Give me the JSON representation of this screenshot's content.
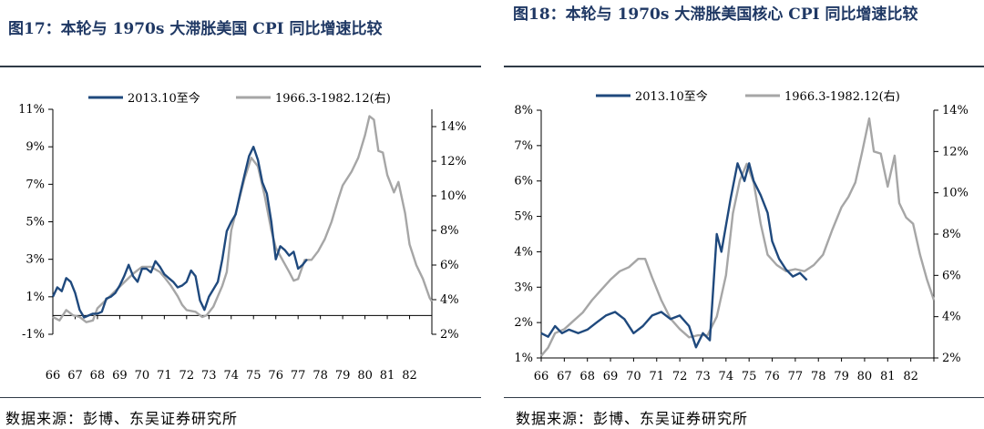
{
  "panels": [
    {
      "title": "图17：本轮与 1970s 大滞胀美国 CPI 同比增速比较",
      "source": "数据来源：彭博、东吴证券研究所"
    },
    {
      "title": "图18：本轮与 1970s 大滞胀美国核心 CPI 同比增速比较",
      "source": "数据来源：彭博、东吴证券研究所"
    }
  ],
  "colors": {
    "current": "#1f497d",
    "historical": "#a6a6a6",
    "title": "#1f3864"
  },
  "chart_data": [
    {
      "type": "line",
      "x_ticks": [
        "66",
        "67",
        "68",
        "69",
        "70",
        "71",
        "72",
        "73",
        "74",
        "75",
        "76",
        "77",
        "78",
        "79",
        "80",
        "81",
        "82"
      ],
      "ylim_left": [
        -1,
        11
      ],
      "yticks_left": [
        "-1%",
        "1%",
        "3%",
        "5%",
        "7%",
        "9%",
        "11%"
      ],
      "yticks_left_values": [
        -1,
        1,
        3,
        5,
        7,
        9,
        11
      ],
      "ylim_right": [
        2,
        15
      ],
      "yticks_right": [
        "2%",
        "4%",
        "6%",
        "8%",
        "10%",
        "12%",
        "14%"
      ],
      "yticks_right_values": [
        2,
        4,
        6,
        8,
        10,
        12,
        14
      ],
      "legend_position": "top",
      "series": [
        {
          "name": "2013.10至今",
          "axis": "left",
          "color": "#1f497d",
          "points": [
            [
              66,
              1.0
            ],
            [
              66.2,
              1.5
            ],
            [
              66.4,
              1.3
            ],
            [
              66.6,
              2.0
            ],
            [
              66.8,
              1.8
            ],
            [
              67.0,
              1.2
            ],
            [
              67.2,
              0.3
            ],
            [
              67.4,
              -0.1
            ],
            [
              67.6,
              0.0
            ],
            [
              67.8,
              0.1
            ],
            [
              68.0,
              0.1
            ],
            [
              68.2,
              0.2
            ],
            [
              68.4,
              0.9
            ],
            [
              68.6,
              1.0
            ],
            [
              68.8,
              1.2
            ],
            [
              69.0,
              1.6
            ],
            [
              69.2,
              2.1
            ],
            [
              69.4,
              2.7
            ],
            [
              69.6,
              2.1
            ],
            [
              69.8,
              1.8
            ],
            [
              70.0,
              2.5
            ],
            [
              70.2,
              2.5
            ],
            [
              70.4,
              2.3
            ],
            [
              70.6,
              2.9
            ],
            [
              70.8,
              2.6
            ],
            [
              71.0,
              2.2
            ],
            [
              71.2,
              2.0
            ],
            [
              71.4,
              1.8
            ],
            [
              71.6,
              1.5
            ],
            [
              71.8,
              1.6
            ],
            [
              72.0,
              1.8
            ],
            [
              72.2,
              2.4
            ],
            [
              72.4,
              2.1
            ],
            [
              72.6,
              0.8
            ],
            [
              72.8,
              0.3
            ],
            [
              73.0,
              1.0
            ],
            [
              73.2,
              1.4
            ],
            [
              73.4,
              1.8
            ],
            [
              73.6,
              3.0
            ],
            [
              73.8,
              4.5
            ],
            [
              74.0,
              5.0
            ],
            [
              74.2,
              5.4
            ],
            [
              74.4,
              6.5
            ],
            [
              74.6,
              7.5
            ],
            [
              74.8,
              8.5
            ],
            [
              75.0,
              9.0
            ],
            [
              75.2,
              8.3
            ],
            [
              75.4,
              7.1
            ],
            [
              75.6,
              6.5
            ],
            [
              75.8,
              5.0
            ],
            [
              76.0,
              3.0
            ],
            [
              76.2,
              3.7
            ],
            [
              76.4,
              3.5
            ],
            [
              76.6,
              3.2
            ],
            [
              76.8,
              3.4
            ],
            [
              77.0,
              2.5
            ],
            [
              77.2,
              2.7
            ],
            [
              77.4,
              3.0
            ]
          ]
        },
        {
          "name": "1966.3-1982.12(右)",
          "axis": "right",
          "color": "#a6a6a6",
          "points": [
            [
              66,
              3.0
            ],
            [
              66.3,
              2.8
            ],
            [
              66.6,
              3.4
            ],
            [
              66.9,
              3.1
            ],
            [
              67.2,
              3.0
            ],
            [
              67.5,
              2.7
            ],
            [
              67.8,
              2.8
            ],
            [
              68.0,
              3.5
            ],
            [
              68.4,
              4.0
            ],
            [
              68.8,
              4.5
            ],
            [
              69.2,
              5.0
            ],
            [
              69.6,
              5.5
            ],
            [
              70.0,
              5.9
            ],
            [
              70.4,
              5.9
            ],
            [
              70.8,
              5.6
            ],
            [
              71.0,
              5.3
            ],
            [
              71.3,
              4.8
            ],
            [
              71.6,
              4.2
            ],
            [
              71.8,
              3.7
            ],
            [
              72.0,
              3.4
            ],
            [
              72.4,
              3.3
            ],
            [
              72.7,
              3.0
            ],
            [
              72.9,
              3.1
            ],
            [
              73.2,
              3.6
            ],
            [
              73.6,
              4.8
            ],
            [
              73.8,
              5.6
            ],
            [
              74.0,
              8.0
            ],
            [
              74.3,
              9.5
            ],
            [
              74.6,
              11.0
            ],
            [
              74.9,
              12.2
            ],
            [
              75.2,
              11.7
            ],
            [
              75.5,
              10.0
            ],
            [
              75.8,
              8.0
            ],
            [
              76.0,
              7.0
            ],
            [
              76.3,
              6.3
            ],
            [
              76.6,
              5.6
            ],
            [
              76.8,
              5.1
            ],
            [
              77.0,
              5.2
            ],
            [
              77.3,
              6.3
            ],
            [
              77.6,
              6.3
            ],
            [
              77.9,
              6.8
            ],
            [
              78.2,
              7.5
            ],
            [
              78.5,
              8.5
            ],
            [
              78.8,
              9.8
            ],
            [
              79.0,
              10.6
            ],
            [
              79.4,
              11.4
            ],
            [
              79.7,
              12.2
            ],
            [
              80.0,
              13.5
            ],
            [
              80.2,
              14.6
            ],
            [
              80.4,
              14.4
            ],
            [
              80.6,
              12.6
            ],
            [
              80.8,
              12.5
            ],
            [
              81.0,
              11.2
            ],
            [
              81.3,
              10.2
            ],
            [
              81.5,
              10.8
            ],
            [
              81.8,
              9.0
            ],
            [
              82.0,
              7.2
            ],
            [
              82.3,
              6.0
            ],
            [
              82.6,
              5.2
            ],
            [
              82.9,
              4.1
            ],
            [
              83.0,
              3.9
            ]
          ]
        }
      ]
    },
    {
      "type": "line",
      "x_ticks": [
        "66",
        "67",
        "68",
        "69",
        "70",
        "71",
        "72",
        "73",
        "74",
        "75",
        "76",
        "77",
        "78",
        "79",
        "80",
        "81",
        "82"
      ],
      "ylim_left": [
        1,
        8
      ],
      "yticks_left": [
        "1%",
        "2%",
        "3%",
        "4%",
        "5%",
        "6%",
        "7%",
        "8%"
      ],
      "yticks_left_values": [
        1,
        2,
        3,
        4,
        5,
        6,
        7,
        8
      ],
      "ylim_right": [
        2,
        14
      ],
      "yticks_right": [
        "2%",
        "4%",
        "6%",
        "8%",
        "10%",
        "12%",
        "14%"
      ],
      "yticks_right_values": [
        2,
        4,
        6,
        8,
        10,
        12,
        14
      ],
      "legend_position": "top",
      "series": [
        {
          "name": "2013.10至今",
          "axis": "left",
          "color": "#1f497d",
          "points": [
            [
              66,
              1.7
            ],
            [
              66.3,
              1.6
            ],
            [
              66.6,
              1.9
            ],
            [
              66.9,
              1.7
            ],
            [
              67.2,
              1.8
            ],
            [
              67.6,
              1.7
            ],
            [
              68.0,
              1.8
            ],
            [
              68.4,
              2.0
            ],
            [
              68.8,
              2.2
            ],
            [
              69.2,
              2.3
            ],
            [
              69.6,
              2.1
            ],
            [
              70.0,
              1.7
            ],
            [
              70.4,
              1.9
            ],
            [
              70.8,
              2.2
            ],
            [
              71.2,
              2.3
            ],
            [
              71.6,
              2.1
            ],
            [
              72.0,
              2.2
            ],
            [
              72.4,
              1.9
            ],
            [
              72.7,
              1.3
            ],
            [
              73.0,
              1.7
            ],
            [
              73.3,
              1.5
            ],
            [
              73.6,
              4.5
            ],
            [
              73.8,
              4.0
            ],
            [
              74.2,
              5.5
            ],
            [
              74.5,
              6.5
            ],
            [
              74.8,
              6.0
            ],
            [
              75.0,
              6.5
            ],
            [
              75.2,
              6.0
            ],
            [
              75.5,
              5.6
            ],
            [
              75.8,
              5.1
            ],
            [
              76.0,
              4.3
            ],
            [
              76.3,
              3.8
            ],
            [
              76.6,
              3.5
            ],
            [
              76.9,
              3.3
            ],
            [
              77.2,
              3.4
            ],
            [
              77.5,
              3.2
            ]
          ]
        },
        {
          "name": "1966.3-1982.12(右)",
          "axis": "right",
          "color": "#a6a6a6",
          "points": [
            [
              66,
              2.1
            ],
            [
              66.3,
              2.5
            ],
            [
              66.6,
              3.2
            ],
            [
              67.0,
              3.4
            ],
            [
              67.4,
              3.8
            ],
            [
              67.8,
              4.2
            ],
            [
              68.2,
              4.8
            ],
            [
              68.6,
              5.3
            ],
            [
              69.0,
              5.8
            ],
            [
              69.4,
              6.2
            ],
            [
              69.8,
              6.4
            ],
            [
              70.2,
              6.8
            ],
            [
              70.5,
              6.8
            ],
            [
              70.8,
              5.9
            ],
            [
              71.2,
              4.8
            ],
            [
              71.6,
              3.9
            ],
            [
              72.0,
              3.4
            ],
            [
              72.4,
              3.0
            ],
            [
              72.8,
              3.1
            ],
            [
              73.2,
              3.1
            ],
            [
              73.6,
              4.0
            ],
            [
              74.0,
              6.0
            ],
            [
              74.3,
              9.0
            ],
            [
              74.6,
              10.6
            ],
            [
              74.9,
              11.4
            ],
            [
              75.2,
              10.5
            ],
            [
              75.5,
              8.5
            ],
            [
              75.8,
              7.0
            ],
            [
              76.2,
              6.5
            ],
            [
              76.6,
              6.2
            ],
            [
              77.0,
              6.3
            ],
            [
              77.4,
              6.2
            ],
            [
              77.8,
              6.5
            ],
            [
              78.2,
              7.0
            ],
            [
              78.6,
              8.2
            ],
            [
              79.0,
              9.3
            ],
            [
              79.3,
              9.8
            ],
            [
              79.6,
              10.5
            ],
            [
              79.9,
              12.0
            ],
            [
              80.2,
              13.6
            ],
            [
              80.4,
              12.0
            ],
            [
              80.7,
              11.9
            ],
            [
              81.0,
              10.3
            ],
            [
              81.3,
              11.8
            ],
            [
              81.5,
              9.5
            ],
            [
              81.8,
              8.8
            ],
            [
              82.1,
              8.5
            ],
            [
              82.4,
              7.0
            ],
            [
              82.7,
              5.8
            ],
            [
              83.0,
              4.8
            ]
          ]
        }
      ]
    }
  ]
}
